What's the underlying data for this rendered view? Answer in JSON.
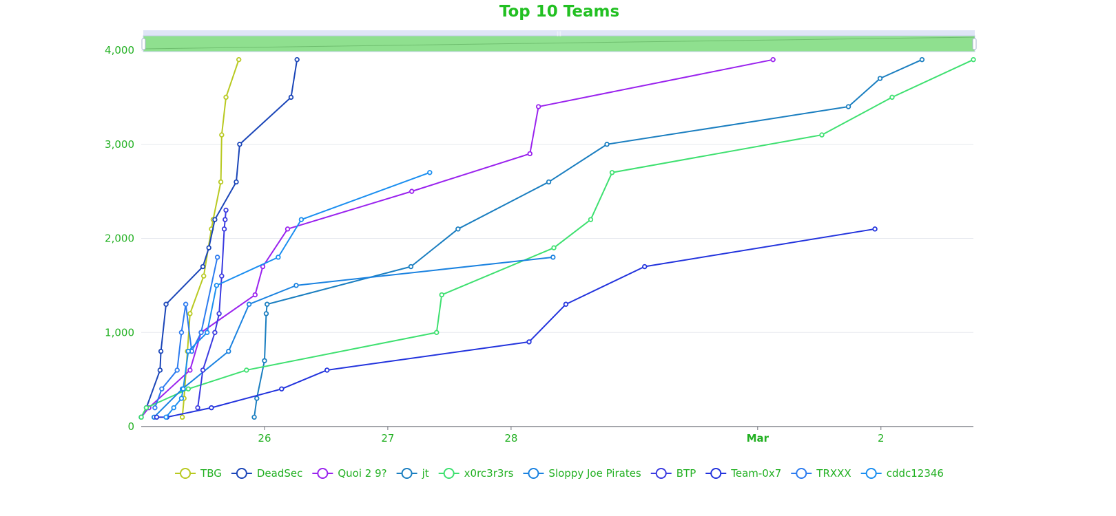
{
  "colors": {
    "title": "#22c022",
    "text": "#22b022",
    "grid": "#e6e8ee",
    "axis": "#6e7079",
    "slider_bg": "#dfe5f6",
    "slider_fill": "#8fe08f",
    "slider_border": "#c6d0ea"
  },
  "chart_data": {
    "type": "line",
    "title": "Top 10 Teams",
    "xlabel": "",
    "ylabel": "",
    "x_type": "time",
    "x_range": [
      "2024-02-25",
      "2024-03-02T18:00"
    ],
    "x_ticks": [
      {
        "label": "26",
        "date": "2024-02-26",
        "bold": false
      },
      {
        "label": "27",
        "date": "2024-02-27",
        "bold": false
      },
      {
        "label": "28",
        "date": "2024-02-28",
        "bold": false
      },
      {
        "label": "Mar",
        "date": "2024-03-01",
        "bold": true
      },
      {
        "label": "2",
        "date": "2024-03-02",
        "bold": false
      }
    ],
    "ylim": [
      0,
      4000
    ],
    "y_ticks": [
      {
        "label": "0",
        "value": 0
      },
      {
        "label": "1,000",
        "value": 1000
      },
      {
        "label": "2,000",
        "value": 2000
      },
      {
        "label": "3,000",
        "value": 3000
      },
      {
        "label": "4,000",
        "value": 4000
      }
    ],
    "grid": true,
    "legend": "bottom",
    "data_zoom_slider": true,
    "series": [
      {
        "name": "TBG",
        "color": "#b8c920",
        "points": [
          [
            "2024-02-25T08:00",
            100
          ],
          [
            "2024-02-25T08:20",
            300
          ],
          [
            "2024-02-25T09:00",
            800
          ],
          [
            "2024-02-25T09:30",
            1200
          ],
          [
            "2024-02-25T12:10",
            1600
          ],
          [
            "2024-02-25T13:40",
            2100
          ],
          [
            "2024-02-25T14:00",
            2200
          ],
          [
            "2024-02-25T15:30",
            2600
          ],
          [
            "2024-02-25T15:40",
            3100
          ],
          [
            "2024-02-25T16:30",
            3500
          ],
          [
            "2024-02-25T19:00",
            3900
          ]
        ]
      },
      {
        "name": "DeadSec",
        "color": "#1a45b8",
        "points": [
          [
            "2024-02-25T00:00",
            100
          ],
          [
            "2024-02-25T01:00",
            200
          ],
          [
            "2024-02-25T03:40",
            600
          ],
          [
            "2024-02-25T03:50",
            800
          ],
          [
            "2024-02-25T04:50",
            1300
          ],
          [
            "2024-02-25T12:00",
            1700
          ],
          [
            "2024-02-25T13:10",
            1900
          ],
          [
            "2024-02-25T14:20",
            2200
          ],
          [
            "2024-02-25T18:30",
            2600
          ],
          [
            "2024-02-25T19:10",
            3000
          ],
          [
            "2024-02-26T05:10",
            3500
          ],
          [
            "2024-02-26T06:20",
            3900
          ]
        ]
      },
      {
        "name": "Quoi 2 9?",
        "color": "#9a22ee",
        "points": [
          [
            "2024-02-25T00:00",
            100
          ],
          [
            "2024-02-25T01:30",
            200
          ],
          [
            "2024-02-25T09:30",
            600
          ],
          [
            "2024-02-25T11:40",
            1000
          ],
          [
            "2024-02-25T22:10",
            1400
          ],
          [
            "2024-02-25T23:40",
            1700
          ],
          [
            "2024-02-26T04:30",
            2100
          ],
          [
            "2024-02-27T04:40",
            2500
          ],
          [
            "2024-02-28T03:40",
            2900
          ],
          [
            "2024-02-28T05:20",
            3400
          ],
          [
            "2024-03-01T03:00",
            3900
          ]
        ]
      },
      {
        "name": "jt",
        "color": "#1a7ec0",
        "points": [
          [
            "2024-02-25T22:00",
            100
          ],
          [
            "2024-02-25T22:30",
            300
          ],
          [
            "2024-02-26T00:00",
            700
          ],
          [
            "2024-02-26T00:20",
            1200
          ],
          [
            "2024-02-26T00:30",
            1300
          ],
          [
            "2024-02-27T04:30",
            1700
          ],
          [
            "2024-02-27T13:40",
            2100
          ],
          [
            "2024-02-28T07:20",
            2600
          ],
          [
            "2024-02-28T18:40",
            3000
          ],
          [
            "2024-03-01T17:40",
            3400
          ],
          [
            "2024-03-01T23:50",
            3700
          ],
          [
            "2024-03-02T08:00",
            3900
          ]
        ]
      },
      {
        "name": "x0rc3r3rs",
        "color": "#3ee070",
        "points": [
          [
            "2024-02-25T00:00",
            100
          ],
          [
            "2024-02-25T01:00",
            200
          ],
          [
            "2024-02-25T09:10",
            400
          ],
          [
            "2024-02-25T20:30",
            600
          ],
          [
            "2024-02-27T09:30",
            1000
          ],
          [
            "2024-02-27T10:30",
            1400
          ],
          [
            "2024-02-28T08:20",
            1900
          ],
          [
            "2024-02-28T15:30",
            2200
          ],
          [
            "2024-02-28T19:40",
            2700
          ],
          [
            "2024-03-01T12:30",
            3100
          ],
          [
            "2024-03-02T02:10",
            3500
          ],
          [
            "2024-03-02T18:00",
            3900
          ]
        ]
      },
      {
        "name": "Sloppy Joe Pirates",
        "color": "#1a82e0",
        "points": [
          [
            "2024-02-25T02:30",
            100
          ],
          [
            "2024-02-25T08:00",
            400
          ],
          [
            "2024-02-25T17:00",
            800
          ],
          [
            "2024-02-25T21:00",
            1300
          ],
          [
            "2024-02-26T06:10",
            1500
          ],
          [
            "2024-02-28T08:10",
            1800
          ]
        ]
      },
      {
        "name": "BTP",
        "color": "#3a3ae0",
        "points": [
          [
            "2024-02-25T11:00",
            200
          ],
          [
            "2024-02-25T12:00",
            600
          ],
          [
            "2024-02-25T14:20",
            1000
          ],
          [
            "2024-02-25T15:10",
            1200
          ],
          [
            "2024-02-25T15:40",
            1600
          ],
          [
            "2024-02-25T16:10",
            2100
          ],
          [
            "2024-02-25T16:20",
            2200
          ],
          [
            "2024-02-25T16:30",
            2300
          ]
        ]
      },
      {
        "name": "Team-0x7",
        "color": "#2233dd",
        "points": [
          [
            "2024-02-25T03:00",
            100
          ],
          [
            "2024-02-25T05:00",
            100
          ],
          [
            "2024-02-25T13:40",
            200
          ],
          [
            "2024-02-26T03:20",
            400
          ],
          [
            "2024-02-26T12:10",
            600
          ],
          [
            "2024-02-28T03:30",
            900
          ],
          [
            "2024-02-28T10:40",
            1300
          ],
          [
            "2024-02-29T02:00",
            1700
          ],
          [
            "2024-03-01T22:50",
            2100
          ]
        ]
      },
      {
        "name": "TRXXX",
        "color": "#2c7bef",
        "points": [
          [
            "2024-02-25T02:40",
            200
          ],
          [
            "2024-02-25T04:00",
            400
          ],
          [
            "2024-02-25T07:00",
            600
          ],
          [
            "2024-02-25T07:50",
            1000
          ],
          [
            "2024-02-25T08:40",
            1300
          ],
          [
            "2024-02-25T09:50",
            800
          ],
          [
            "2024-02-25T11:40",
            1000
          ],
          [
            "2024-02-25T14:50",
            1800
          ]
        ]
      },
      {
        "name": "cddc12346",
        "color": "#1a8ef0",
        "points": [
          [
            "2024-02-25T04:50",
            100
          ],
          [
            "2024-02-25T06:20",
            200
          ],
          [
            "2024-02-25T07:50",
            300
          ],
          [
            "2024-02-25T08:10",
            400
          ],
          [
            "2024-02-25T09:10",
            800
          ],
          [
            "2024-02-25T12:50",
            1000
          ],
          [
            "2024-02-25T14:40",
            1500
          ],
          [
            "2024-02-26T02:40",
            1800
          ],
          [
            "2024-02-26T07:10",
            2200
          ],
          [
            "2024-02-27T08:10",
            2700
          ]
        ]
      }
    ]
  }
}
